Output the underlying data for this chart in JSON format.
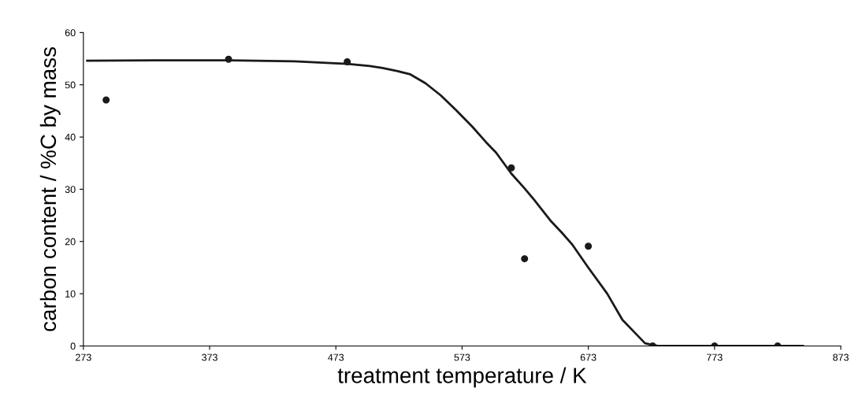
{
  "chart_data": {
    "type": "scatter",
    "xlabel": "treatment temperature / K",
    "ylabel": "carbon content / %C by mass",
    "series": [
      {
        "color": "#1a1a1a",
        "marker": "circle",
        "x": [
          291,
          388,
          482,
          612,
          622.5,
          673,
          724,
          773,
          823
        ],
        "values": [
          47.1,
          54.9,
          54.4,
          34.1,
          16.7,
          19.1,
          0,
          0,
          0
        ]
      },
      {
        "type": "line",
        "marker": "none",
        "color": "#1a1a1a",
        "x": [
          276,
          330,
          388,
          440,
          482,
          500,
          510,
          522,
          532,
          544,
          556,
          568,
          581,
          592,
          600,
          612,
          622,
          630,
          643,
          652,
          660,
          673,
          688,
          700,
          710,
          718,
          728,
          737,
          750,
          768,
          800,
          843
        ],
        "values": [
          54.6,
          54.7,
          54.7,
          54.5,
          54,
          53.6,
          53.2,
          52.6,
          52,
          50.3,
          48,
          45.2,
          42,
          39,
          37,
          33,
          30.3,
          28,
          24,
          21.7,
          19.5,
          15,
          10,
          5,
          2.5,
          0.5,
          0,
          0,
          0,
          0,
          0,
          0
        ]
      }
    ],
    "xlim": [
      273,
      873
    ],
    "xticks": [
      273,
      373,
      473,
      573,
      673,
      773,
      873
    ],
    "ylim": [
      0,
      60
    ],
    "yticks": [
      0,
      10,
      20,
      30,
      40,
      50,
      60
    ],
    "grid": false,
    "legend": false
  }
}
